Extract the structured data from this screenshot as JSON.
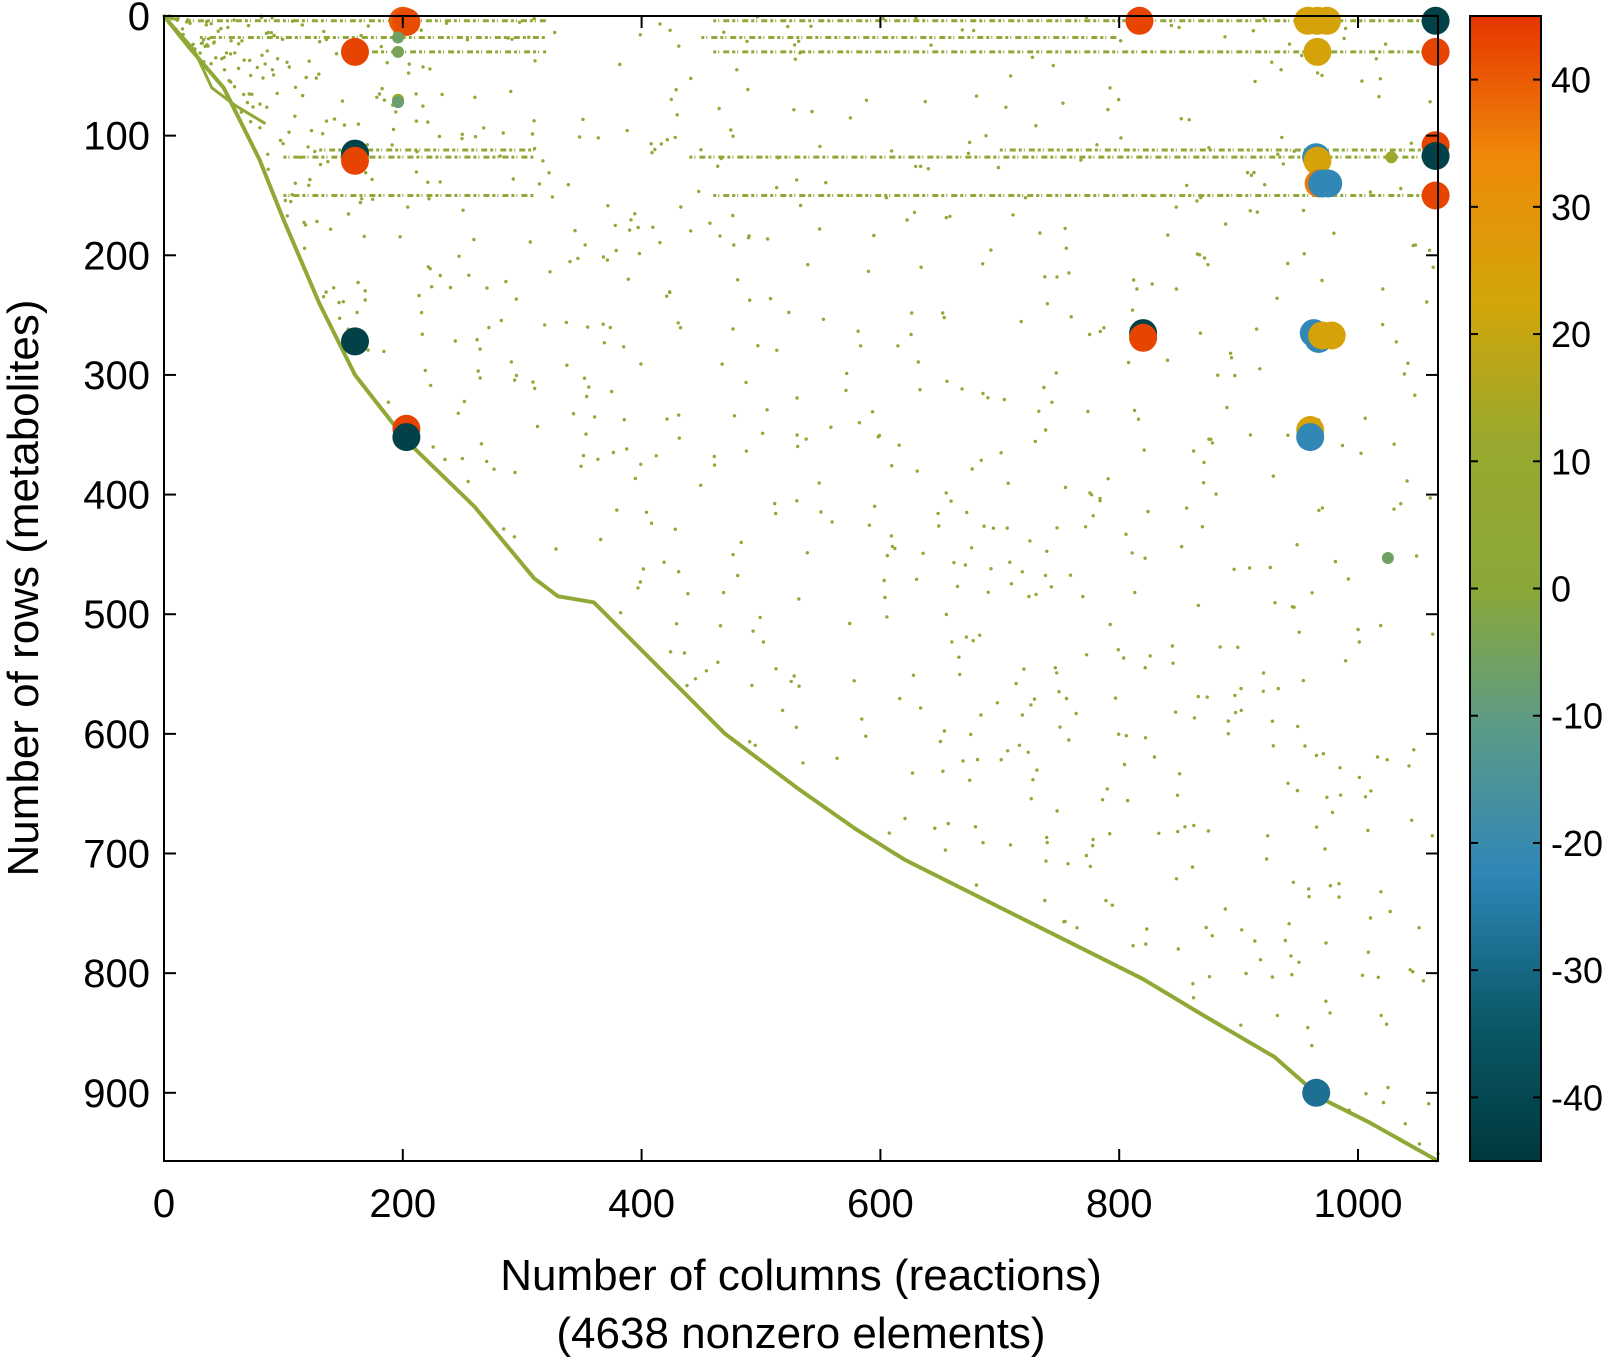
{
  "chart_data": {
    "type": "scatter",
    "title": "",
    "xlabel": "Number of columns (reactions)",
    "xlabel_sub": "(4638 nonzero elements)",
    "ylabel": "Number of rows (metabolites)",
    "xlim": [
      0,
      1067
    ],
    "ylim": [
      0,
      957
    ],
    "y_reversed": true,
    "grid": false,
    "x_ticks": [
      0,
      200,
      400,
      600,
      800,
      1000
    ],
    "y_ticks": [
      0,
      100,
      200,
      300,
      400,
      500,
      600,
      700,
      800,
      900
    ],
    "colorbar": {
      "range": [
        -45,
        45
      ],
      "ticks": [
        40,
        30,
        20,
        10,
        0,
        -10,
        -20,
        -30,
        -40
      ],
      "tick_labels": [
        "40",
        "30",
        "20",
        "10",
        "0",
        "-10",
        "-20",
        "-30",
        "-40"
      ],
      "colormap": [
        "#00383c",
        "#0a5a6a",
        "#2f86b7",
        "#5a9a8a",
        "#8aa838",
        "#98a82e",
        "#d2a60a",
        "#ee8a0a",
        "#e63500"
      ]
    },
    "dominant_color": "#90a936",
    "diagonal_path": [
      [
        0,
        0
      ],
      [
        20,
        25
      ],
      [
        50,
        60
      ],
      [
        80,
        120
      ],
      [
        100,
        170
      ],
      [
        130,
        240
      ],
      [
        160,
        300
      ],
      [
        203,
        355
      ],
      [
        260,
        410
      ],
      [
        310,
        470
      ],
      [
        330,
        485
      ],
      [
        360,
        490
      ],
      [
        430,
        560
      ],
      [
        470,
        600
      ],
      [
        530,
        645
      ],
      [
        580,
        680
      ],
      [
        620,
        705
      ],
      [
        660,
        725
      ],
      [
        700,
        745
      ],
      [
        760,
        775
      ],
      [
        820,
        805
      ],
      [
        870,
        835
      ],
      [
        930,
        870
      ],
      [
        970,
        905
      ],
      [
        1010,
        925
      ],
      [
        1067,
        957
      ]
    ],
    "upper_diagonal_path": [
      [
        0,
        0
      ],
      [
        25,
        28
      ],
      [
        40,
        60
      ],
      [
        60,
        75
      ],
      [
        85,
        90
      ]
    ],
    "row_bands": [
      {
        "y": 4,
        "x0": 20,
        "x1": 320
      },
      {
        "y": 4,
        "x0": 460,
        "x1": 1067
      },
      {
        "y": 18,
        "x0": 30,
        "x1": 320
      },
      {
        "y": 18,
        "x0": 450,
        "x1": 800
      },
      {
        "y": 30,
        "x0": 150,
        "x1": 320
      },
      {
        "y": 30,
        "x0": 460,
        "x1": 1067
      },
      {
        "y": 112,
        "x0": 130,
        "x1": 310
      },
      {
        "y": 112,
        "x0": 700,
        "x1": 1067
      },
      {
        "y": 118,
        "x0": 100,
        "x1": 310
      },
      {
        "y": 118,
        "x0": 440,
        "x1": 1067
      },
      {
        "y": 150,
        "x0": 100,
        "x1": 310
      },
      {
        "y": 150,
        "x0": 460,
        "x1": 1067
      }
    ],
    "scatter_seed": 7,
    "scatter_count": 900,
    "large_points": [
      {
        "x": 200,
        "y": 4,
        "v": 40
      },
      {
        "x": 203,
        "y": 5,
        "v": 42
      },
      {
        "x": 160,
        "y": 30,
        "v": 43
      },
      {
        "x": 196,
        "y": 18,
        "v": -6
      },
      {
        "x": 196,
        "y": 30,
        "v": -4
      },
      {
        "x": 196,
        "y": 70,
        "v": 12
      },
      {
        "x": 196,
        "y": 72,
        "v": -8
      },
      {
        "x": 160,
        "y": 115,
        "v": -42
      },
      {
        "x": 160,
        "y": 121,
        "v": 43
      },
      {
        "x": 160,
        "y": 272,
        "v": -42
      },
      {
        "x": 203,
        "y": 345,
        "v": 43
      },
      {
        "x": 203,
        "y": 352,
        "v": -42
      },
      {
        "x": 817,
        "y": 4,
        "v": 43
      },
      {
        "x": 820,
        "y": 265,
        "v": -42
      },
      {
        "x": 820,
        "y": 269,
        "v": 43
      },
      {
        "x": 958,
        "y": 4,
        "v": 24
      },
      {
        "x": 966,
        "y": 4,
        "v": 24
      },
      {
        "x": 974,
        "y": 4,
        "v": 24
      },
      {
        "x": 966,
        "y": 30,
        "v": 24
      },
      {
        "x": 965,
        "y": 118,
        "v": -22
      },
      {
        "x": 966,
        "y": 121,
        "v": 24
      },
      {
        "x": 967,
        "y": 140,
        "v": 36
      },
      {
        "x": 970,
        "y": 140,
        "v": -22
      },
      {
        "x": 975,
        "y": 140,
        "v": -22
      },
      {
        "x": 963,
        "y": 265,
        "v": -22
      },
      {
        "x": 967,
        "y": 270,
        "v": -22
      },
      {
        "x": 970,
        "y": 267,
        "v": 24
      },
      {
        "x": 978,
        "y": 267,
        "v": 24
      },
      {
        "x": 960,
        "y": 346,
        "v": 24
      },
      {
        "x": 960,
        "y": 352,
        "v": -22
      },
      {
        "x": 965,
        "y": 900,
        "v": -28
      },
      {
        "x": 1028,
        "y": 118,
        "v": 12
      },
      {
        "x": 1025,
        "y": 453,
        "v": -6
      },
      {
        "x": 1065,
        "y": 4,
        "v": -42
      },
      {
        "x": 1065,
        "y": 30,
        "v": 43
      },
      {
        "x": 1065,
        "y": 108,
        "v": 43
      },
      {
        "x": 1065,
        "y": 117,
        "v": -42
      },
      {
        "x": 1065,
        "y": 150,
        "v": 43
      }
    ]
  }
}
